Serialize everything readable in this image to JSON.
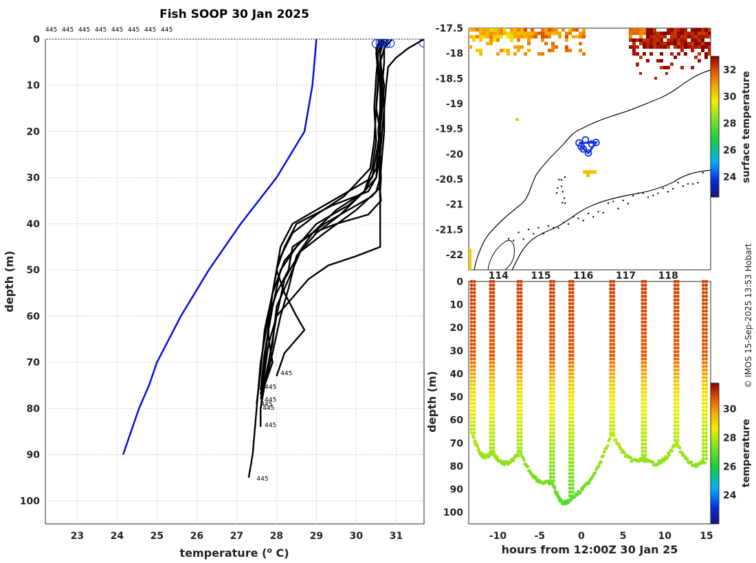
{
  "title": "Fish SOOP 30 Jan 2025",
  "credit": "© IMOS 15-Sep-2025 13:53 Hobart",
  "colors": {
    "profile": "#000000",
    "climatology": "#0010d8",
    "surface_marker": "#1030e0",
    "coast": "#000000"
  },
  "chart_data": [
    {
      "id": "profile",
      "type": "line",
      "xlabel": "temperature (° C)",
      "xlabel_main": "temperature (",
      "xlabel_sup": "o",
      "xlabel_end": " C)",
      "ylabel": "depth (m)",
      "xlim": [
        22.2,
        31.7
      ],
      "ylim": [
        105,
        0
      ],
      "xticks": [
        23,
        24,
        25,
        26,
        27,
        28,
        29,
        30,
        31
      ],
      "yticks": [
        0,
        10,
        20,
        30,
        40,
        50,
        60,
        70,
        80,
        90,
        100
      ],
      "grid": true,
      "top_labels": [
        "445",
        "445",
        "445",
        "445",
        "445",
        "445",
        "445",
        "445"
      ],
      "end_labels": [
        {
          "text": "445",
          "x": 28.1,
          "y": 72.8
        },
        {
          "text": "445",
          "x": 27.7,
          "y": 75.8
        },
        {
          "text": "445",
          "x": 27.7,
          "y": 78.5
        },
        {
          "text": "445",
          "x": 27.6,
          "y": 79.5
        },
        {
          "text": "445",
          "x": 27.65,
          "y": 80.3
        },
        {
          "text": "445",
          "x": 27.7,
          "y": 84.0
        },
        {
          "text": "445",
          "x": 27.5,
          "y": 95.6
        }
      ],
      "surface_markers": [
        {
          "x": 30.5,
          "y": 1.0
        },
        {
          "x": 30.6,
          "y": 0.8
        },
        {
          "x": 30.65,
          "y": 0.6
        },
        {
          "x": 30.7,
          "y": 0.1
        },
        {
          "x": 30.75,
          "y": 1.0
        },
        {
          "x": 30.85,
          "y": 0.9
        },
        {
          "x": 31.68,
          "y": 0.8
        }
      ],
      "climatology": {
        "name": "climatology",
        "temp": [
          29.0,
          28.9,
          28.7,
          28.0,
          27.1,
          26.3,
          25.6,
          25.0,
          24.8,
          24.55,
          24.15
        ],
        "depth": [
          0,
          10,
          20,
          30,
          40,
          50,
          60,
          70,
          75,
          80,
          90
        ]
      },
      "profiles": [
        {
          "temp": [
            30.8,
            30.6,
            30.6,
            30.65,
            30.7,
            30.65,
            30.6,
            30.62,
            30.6,
            30.62,
            30.3,
            29.5,
            28.9,
            28.4,
            28.3,
            28.0,
            27.8,
            27.8,
            27.9,
            27.7,
            27.6,
            27.6
          ],
          "depth": [
            0,
            2,
            5,
            10,
            15,
            20,
            25,
            30,
            33,
            35,
            38,
            40,
            42,
            45,
            50,
            55,
            60,
            65,
            70,
            75,
            80,
            84
          ]
        },
        {
          "temp": [
            30.7,
            30.5,
            30.55,
            30.6,
            30.6,
            30.55,
            30.6,
            30.5,
            30.3,
            29.4,
            28.5,
            28.2,
            28.0,
            27.9,
            27.8,
            27.7,
            27.6,
            27.5,
            27.4,
            27.3
          ],
          "depth": [
            0,
            2,
            5,
            10,
            15,
            20,
            25,
            30,
            33,
            36,
            40,
            45,
            50,
            55,
            60,
            65,
            70,
            80,
            90,
            95
          ]
        },
        {
          "temp": [
            30.6,
            30.5,
            30.55,
            30.55,
            30.5,
            30.6,
            30.5,
            30.4,
            29.8,
            29.2,
            28.8,
            28.4,
            28.1,
            28.0,
            28.2,
            28.5,
            28.7,
            28.2,
            28.0
          ],
          "depth": [
            0,
            2,
            5,
            10,
            15,
            20,
            25,
            30,
            33,
            36,
            38,
            40,
            45,
            50,
            55,
            60,
            63,
            68,
            73
          ]
        },
        {
          "temp": [
            30.7,
            30.6,
            30.6,
            30.7,
            30.65,
            30.6,
            30.55,
            30.6,
            30.6,
            30.4,
            30.0,
            29.2,
            28.6,
            28.2,
            27.9,
            27.8,
            27.7,
            27.6
          ],
          "depth": [
            0,
            2,
            5,
            10,
            15,
            20,
            25,
            30,
            32,
            34,
            36,
            40,
            44,
            48,
            55,
            62,
            70,
            76
          ]
        },
        {
          "temp": [
            30.8,
            30.7,
            30.6,
            30.62,
            30.6,
            30.6,
            30.6,
            30.58,
            30.6,
            30.6,
            30.6,
            30.0,
            29.3,
            28.8,
            28.4,
            28.0,
            27.8,
            27.7,
            27.6
          ],
          "depth": [
            0,
            2,
            5,
            10,
            15,
            20,
            25,
            30,
            35,
            40,
            45,
            47,
            49,
            52,
            56,
            60,
            66,
            72,
            77
          ]
        },
        {
          "temp": [
            30.9,
            30.7,
            30.7,
            30.65,
            30.6,
            30.6,
            30.55,
            30.5,
            30.2,
            29.8,
            29.0,
            28.5,
            28.1,
            27.9,
            27.7,
            27.6
          ],
          "depth": [
            0,
            2,
            5,
            10,
            15,
            20,
            25,
            30,
            33,
            36,
            40,
            45,
            50,
            58,
            68,
            76
          ]
        },
        {
          "temp": [
            31.7,
            31.3,
            31.0,
            30.8,
            30.75,
            30.7,
            30.7,
            30.65,
            30.6,
            30.5,
            30.0,
            29.2,
            28.6,
            28.3,
            28.0,
            27.9,
            27.7,
            27.6
          ],
          "depth": [
            0,
            2,
            4,
            6,
            10,
            15,
            20,
            25,
            30,
            33,
            37,
            42,
            46,
            52,
            58,
            66,
            74,
            80
          ]
        },
        {
          "temp": [
            30.65,
            30.55,
            30.5,
            30.45,
            30.5,
            30.4,
            30.2,
            29.6,
            29.0,
            28.6,
            28.2,
            28.0,
            27.8,
            27.6
          ],
          "depth": [
            0,
            3,
            8,
            15,
            22,
            28,
            33,
            38,
            42,
            46,
            52,
            60,
            70,
            78
          ]
        },
        {
          "temp": [
            30.6,
            30.5,
            30.55,
            30.5,
            30.45,
            30.35,
            29.7,
            29.0,
            28.4,
            28.05,
            27.9,
            27.7,
            27.6,
            27.5
          ],
          "depth": [
            0,
            3,
            8,
            15,
            22,
            28,
            34,
            38,
            42,
            48,
            55,
            63,
            72,
            79
          ]
        },
        {
          "temp": [
            30.7,
            30.6,
            30.65,
            30.6,
            30.5,
            30.2,
            29.5,
            28.9,
            28.5,
            28.3,
            28.1,
            27.9,
            27.7
          ],
          "depth": [
            0,
            3,
            10,
            20,
            28,
            33,
            37,
            42,
            47,
            54,
            60,
            68,
            75
          ]
        }
      ]
    },
    {
      "id": "map",
      "type": "heatmap",
      "ylim": [
        -22.3,
        -17.5
      ],
      "xlim": [
        113.3,
        119.0
      ],
      "yticks": [
        -17.5,
        -18,
        -18.5,
        -19,
        -19.5,
        -20,
        -20.5,
        -21,
        -21.5,
        -22
      ],
      "ytick_labels": [
        "-17.5",
        "-18",
        "-18.5",
        "-19",
        "-19.5",
        "-20",
        "-20.5",
        "-21",
        "-21.5",
        "-22"
      ],
      "xticks": [
        114,
        115,
        116,
        117,
        118
      ],
      "xtick_labels": [
        "114",
        "115",
        "116",
        "117",
        "118"
      ],
      "colorbar": {
        "label": "surface temperature",
        "range": [
          22.5,
          33
        ],
        "ticks": [
          24,
          26,
          28,
          30,
          32
        ]
      },
      "surface_points": [
        {
          "lon": 115.9,
          "lat": -19.78
        },
        {
          "lon": 116.05,
          "lat": -19.72
        },
        {
          "lon": 116.2,
          "lat": -19.8
        },
        {
          "lon": 116.0,
          "lat": -19.9
        },
        {
          "lon": 116.12,
          "lat": -19.98
        },
        {
          "lon": 115.95,
          "lat": -19.85
        },
        {
          "lon": 116.3,
          "lat": -19.77
        }
      ]
    },
    {
      "id": "section",
      "type": "scatter",
      "xlabel": "hours from 12:00Z 30 Jan 25",
      "ylabel": "depth (m)",
      "xlim": [
        -13.5,
        15.5
      ],
      "ylim": [
        105,
        0
      ],
      "xticks": [
        -10,
        -5,
        0,
        5,
        10,
        15
      ],
      "yticks": [
        0,
        10,
        20,
        30,
        40,
        50,
        60,
        70,
        80,
        90,
        100
      ],
      "colorbar": {
        "label": "temperature",
        "range": [
          22,
          31.8
        ],
        "ticks": [
          24,
          26,
          28,
          30
        ]
      },
      "casts": [
        {
          "hour": -13.0,
          "max_depth": 67
        },
        {
          "hour": -10.7,
          "max_depth": 74
        },
        {
          "hour": -7.4,
          "max_depth": 74
        },
        {
          "hour": -3.5,
          "max_depth": 87
        },
        {
          "hour": -1.2,
          "max_depth": 94
        },
        {
          "hour": 3.7,
          "max_depth": 66
        },
        {
          "hour": 7.5,
          "max_depth": 77
        },
        {
          "hour": 11.4,
          "max_depth": 70
        },
        {
          "hour": 14.8,
          "max_depth": 78
        }
      ]
    }
  ]
}
